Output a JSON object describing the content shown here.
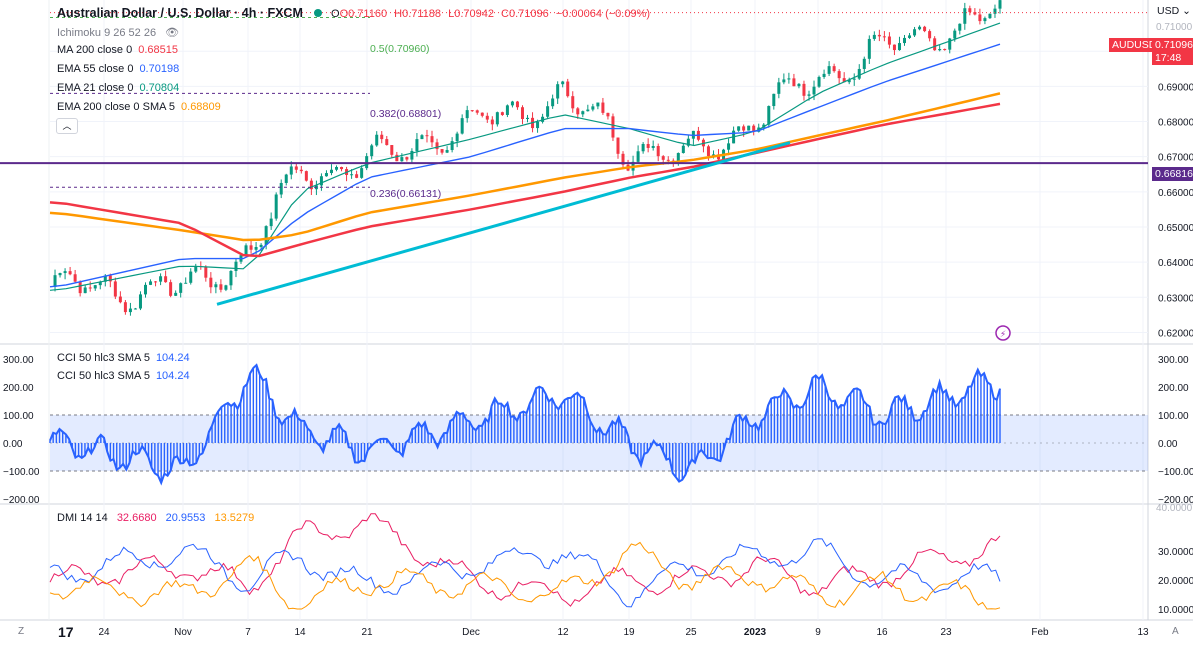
{
  "header": {
    "symbol_title": "Australian Dollar / U.S. Dollar · 4h · FXCM",
    "ohlc": {
      "o": "O0.71160",
      "h": "H0.71188",
      "l": "L0.70942",
      "c": "C0.71096",
      "chg": "−0.00064 (−0.09%)"
    },
    "currency": "USD",
    "status_color": "#089981"
  },
  "indicators": [
    {
      "label": "Ichimoku 9 26 52 26",
      "value": ""
    },
    {
      "label": "MA 200 close 0",
      "value": "0.68515",
      "color": "#f23645"
    },
    {
      "label": "EMA 55 close 0",
      "value": "0.70198",
      "color": "#2962ff"
    },
    {
      "label": "EMA 21 close 0",
      "value": "0.70804",
      "color": "#089981"
    },
    {
      "label": "EMA 200 close 0 SMA 5",
      "value": "0.68809",
      "color": "#ff9800"
    }
  ],
  "price_tags": {
    "symbol": "AUDUSD",
    "last": "0.71096",
    "countdown": "17:48",
    "hline": "0.66816",
    "tag_color": "#f23645",
    "hline_color": "#5b2a8c"
  },
  "fib": {
    "f05": "0.5(0.70960)",
    "f0382": "0.382(0.68801)",
    "f0236": "0.236(0.66131)"
  },
  "price_axis": {
    "ticks": [
      "0.70000",
      "0.69000",
      "0.68000",
      "0.67000",
      "0.66000",
      "0.65000",
      "0.64000",
      "0.63000",
      "0.62000"
    ],
    "top_partial": "0.71000"
  },
  "cci": {
    "label": "CCI 50 hlc3 SMA 5",
    "value": "104.24",
    "ticks": [
      "300.00",
      "200.00",
      "100.00",
      "0.00",
      "−100.00",
      "−200.00"
    ],
    "band": [
      100,
      -100
    ],
    "color": "#2962ff"
  },
  "dmi": {
    "label": "DMI 14 14",
    "values": [
      "32.6680",
      "20.9553",
      "13.5279"
    ],
    "colors": [
      "#e91e63",
      "#2962ff",
      "#ff9800"
    ],
    "ticks": [
      "30.0000",
      "20.0000",
      "10.0000"
    ],
    "top_partial": "40.0000",
    "extra": [
      "30.0000",
      "20.0000"
    ]
  },
  "time_axis": {
    "labels": [
      "24",
      "Nov",
      "7",
      "14",
      "21",
      "Dec",
      "12",
      "19",
      "25",
      "2023",
      "9",
      "16",
      "23",
      "Feb",
      "13"
    ]
  },
  "buttons": {
    "zoom": "Z",
    "auto": "A",
    "logo": "17"
  },
  "chart_data": {
    "type": "line",
    "x": [
      "Oct 24",
      "Nov",
      "Nov 7",
      "Nov 14",
      "Nov 21",
      "Dec",
      "Dec 12",
      "Dec 19",
      "Dec 25",
      "2023",
      "Jan 9",
      "Jan 16",
      "Jan 23"
    ],
    "series": [
      {
        "name": "AUDUSD",
        "values": [
          0.633,
          0.632,
          0.643,
          0.666,
          0.668,
          0.679,
          0.687,
          0.673,
          0.67,
          0.681,
          0.693,
          0.7,
          0.711
        ]
      },
      {
        "name": "EMA 21 close 0",
        "values": [
          0.632,
          0.639,
          0.638,
          0.66,
          0.668,
          0.675,
          0.682,
          0.678,
          0.673,
          0.677,
          0.688,
          0.696,
          0.708
        ]
      },
      {
        "name": "EMA 55 close 0",
        "values": [
          0.633,
          0.641,
          0.641,
          0.653,
          0.664,
          0.67,
          0.678,
          0.678,
          0.676,
          0.677,
          0.684,
          0.691,
          0.702
        ]
      },
      {
        "name": "EMA 200 close 0 SMA 5",
        "values": [
          0.654,
          0.649,
          0.646,
          0.648,
          0.654,
          0.659,
          0.664,
          0.667,
          0.669,
          0.672,
          0.676,
          0.68,
          0.688
        ]
      },
      {
        "name": "MA 200 close 0",
        "values": [
          0.657,
          0.651,
          0.641,
          0.645,
          0.65,
          0.655,
          0.66,
          0.664,
          0.667,
          0.671,
          0.675,
          0.679,
          0.685
        ]
      }
    ],
    "ylim": [
      0.617,
      0.714
    ],
    "hline": 0.66816,
    "trendline": [
      [
        0.628,
        0.674
      ]
    ],
    "cci_values": [
      0,
      -100,
      250,
      50,
      -30,
      80,
      180,
      0,
      -100,
      100,
      200,
      100,
      220
    ],
    "dmi_series": [
      {
        "values": [
          20,
          25,
          18,
          35,
          40,
          20,
          15,
          20,
          20,
          25,
          18,
          22,
          32
        ]
      },
      {
        "values": [
          22,
          30,
          20,
          28,
          18,
          25,
          30,
          15,
          25,
          28,
          30,
          20,
          21
        ]
      },
      {
        "values": [
          18,
          15,
          25,
          12,
          20,
          18,
          15,
          30,
          20,
          22,
          15,
          18,
          13
        ]
      }
    ]
  }
}
